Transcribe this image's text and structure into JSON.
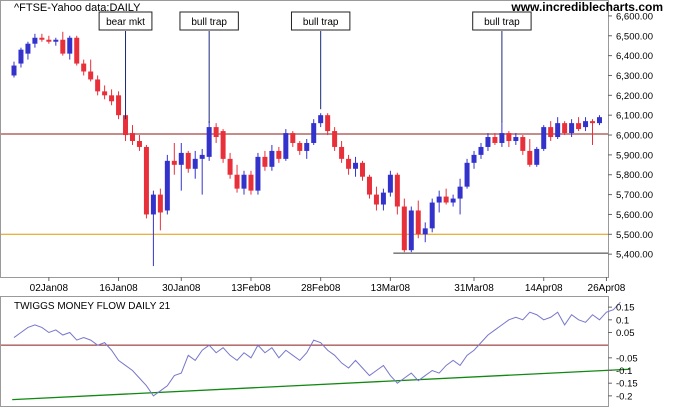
{
  "header": {
    "left_label": "^FTSE-Yahoo data:DAILY",
    "site": "www.incrediblecharts.com"
  },
  "colors": {
    "up": "#3333cc",
    "down": "#e8303a",
    "ref_line_6000": "#8b1a1a",
    "ref_line_5500": "#e69500",
    "ref_line_5400": "#333333",
    "mf_line": "#7777cc",
    "mf_zero": "#8b1a1a",
    "mf_trend": "#118811",
    "annotation_line": "#1a2a7a"
  },
  "chart_data": [
    {
      "type": "candlestick",
      "title": "^FTSE-Yahoo data:DAILY",
      "x_tick_labels": [
        "02Jan08",
        "16Jan08",
        "30Jan08",
        "13Feb08",
        "28Feb08",
        "13Mar08",
        "31Mar08",
        "14Apr08",
        "26Apr08"
      ],
      "x_tick_index": [
        5,
        15,
        24,
        34,
        44,
        54,
        66,
        76,
        85
      ],
      "y_ticks": [
        5400,
        5500,
        5600,
        5700,
        5800,
        5900,
        6000,
        6100,
        6200,
        6300,
        6400,
        6500,
        6600
      ],
      "y_tick_labels": [
        "5,400.00",
        "5,500.00",
        "5,600.00",
        "5,700.00",
        "5,800.00",
        "5,900.00",
        "6,000.00",
        "6,100.00",
        "6,200.00",
        "6,300.00",
        "6,400.00",
        "6,500.00",
        "6,600.00"
      ],
      "ylim": [
        5290,
        6660
      ],
      "reference_lines": [
        {
          "value": 6005,
          "color": "ref_line_6000"
        },
        {
          "value": 5500,
          "color": "ref_line_5500"
        },
        {
          "value": 5405,
          "color": "ref_line_5400",
          "from_index": 55
        }
      ],
      "annotations": [
        {
          "text": "bear mkt",
          "index": 16,
          "value": 6080
        },
        {
          "text": "bull trap",
          "index": 28,
          "value": 6060
        },
        {
          "text": "bull trap",
          "index": 44,
          "value": 6130
        },
        {
          "text": "bull trap",
          "index": 70,
          "value": 6060
        }
      ],
      "candles": [
        {
          "o": 6300,
          "h": 6370,
          "l": 6290,
          "c": 6350
        },
        {
          "o": 6360,
          "h": 6440,
          "l": 6340,
          "c": 6430
        },
        {
          "o": 6410,
          "h": 6470,
          "l": 6380,
          "c": 6460
        },
        {
          "o": 6460,
          "h": 6510,
          "l": 6440,
          "c": 6490
        },
        {
          "o": 6490,
          "h": 6510,
          "l": 6470,
          "c": 6480
        },
        {
          "o": 6480,
          "h": 6500,
          "l": 6460,
          "c": 6470
        },
        {
          "o": 6470,
          "h": 6490,
          "l": 6450,
          "c": 6480
        },
        {
          "o": 6480,
          "h": 6520,
          "l": 6400,
          "c": 6410
        },
        {
          "o": 6410,
          "h": 6500,
          "l": 6380,
          "c": 6490
        },
        {
          "o": 6490,
          "h": 6500,
          "l": 6350,
          "c": 6360
        },
        {
          "o": 6360,
          "h": 6380,
          "l": 6300,
          "c": 6320
        },
        {
          "o": 6320,
          "h": 6380,
          "l": 6270,
          "c": 6280
        },
        {
          "o": 6280,
          "h": 6300,
          "l": 6200,
          "c": 6220
        },
        {
          "o": 6220,
          "h": 6250,
          "l": 6180,
          "c": 6200
        },
        {
          "o": 6200,
          "h": 6230,
          "l": 6150,
          "c": 6170
        },
        {
          "o": 6200,
          "h": 6220,
          "l": 6080,
          "c": 6100
        },
        {
          "o": 6100,
          "h": 6120,
          "l": 5970,
          "c": 6000
        },
        {
          "o": 6010,
          "h": 6050,
          "l": 5950,
          "c": 5970
        },
        {
          "o": 5970,
          "h": 6000,
          "l": 5920,
          "c": 5940
        },
        {
          "o": 5940,
          "h": 5950,
          "l": 5580,
          "c": 5600
        },
        {
          "o": 5600,
          "h": 5720,
          "l": 5340,
          "c": 5700
        },
        {
          "o": 5700,
          "h": 5730,
          "l": 5520,
          "c": 5610
        },
        {
          "o": 5620,
          "h": 5900,
          "l": 5600,
          "c": 5870
        },
        {
          "o": 5870,
          "h": 5960,
          "l": 5800,
          "c": 5850
        },
        {
          "o": 5850,
          "h": 5960,
          "l": 5720,
          "c": 5910
        },
        {
          "o": 5910,
          "h": 5920,
          "l": 5810,
          "c": 5830
        },
        {
          "o": 5830,
          "h": 5920,
          "l": 5780,
          "c": 5880
        },
        {
          "o": 5880,
          "h": 5930,
          "l": 5700,
          "c": 5900
        },
        {
          "o": 5890,
          "h": 6070,
          "l": 5870,
          "c": 6040
        },
        {
          "o": 6040,
          "h": 6060,
          "l": 5960,
          "c": 5990
        },
        {
          "o": 6020,
          "h": 6030,
          "l": 5860,
          "c": 5880
        },
        {
          "o": 5880,
          "h": 5910,
          "l": 5780,
          "c": 5800
        },
        {
          "o": 5800,
          "h": 5850,
          "l": 5710,
          "c": 5730
        },
        {
          "o": 5730,
          "h": 5820,
          "l": 5700,
          "c": 5800
        },
        {
          "o": 5800,
          "h": 5820,
          "l": 5700,
          "c": 5720
        },
        {
          "o": 5720,
          "h": 5910,
          "l": 5700,
          "c": 5890
        },
        {
          "o": 5890,
          "h": 5920,
          "l": 5820,
          "c": 5840
        },
        {
          "o": 5840,
          "h": 5950,
          "l": 5820,
          "c": 5920
        },
        {
          "o": 5920,
          "h": 5940,
          "l": 5860,
          "c": 5880
        },
        {
          "o": 5880,
          "h": 6030,
          "l": 5870,
          "c": 6010
        },
        {
          "o": 6010,
          "h": 6020,
          "l": 5940,
          "c": 5960
        },
        {
          "o": 5960,
          "h": 5970,
          "l": 5900,
          "c": 5920
        },
        {
          "o": 5920,
          "h": 5980,
          "l": 5880,
          "c": 5960
        },
        {
          "o": 5960,
          "h": 6080,
          "l": 5950,
          "c": 6060
        },
        {
          "o": 6060,
          "h": 6110,
          "l": 6040,
          "c": 6100
        },
        {
          "o": 6100,
          "h": 6110,
          "l": 6000,
          "c": 6020
        },
        {
          "o": 6020,
          "h": 6040,
          "l": 5920,
          "c": 5940
        },
        {
          "o": 5940,
          "h": 5970,
          "l": 5860,
          "c": 5880
        },
        {
          "o": 5880,
          "h": 5900,
          "l": 5800,
          "c": 5830
        },
        {
          "o": 5830,
          "h": 5890,
          "l": 5790,
          "c": 5860
        },
        {
          "o": 5860,
          "h": 5870,
          "l": 5770,
          "c": 5790
        },
        {
          "o": 5790,
          "h": 5800,
          "l": 5680,
          "c": 5700
        },
        {
          "o": 5700,
          "h": 5740,
          "l": 5620,
          "c": 5650
        },
        {
          "o": 5650,
          "h": 5730,
          "l": 5620,
          "c": 5710
        },
        {
          "o": 5710,
          "h": 5820,
          "l": 5690,
          "c": 5800
        },
        {
          "o": 5800,
          "h": 5810,
          "l": 5600,
          "c": 5640
        },
        {
          "o": 5640,
          "h": 5680,
          "l": 5410,
          "c": 5420
        },
        {
          "o": 5420,
          "h": 5640,
          "l": 5410,
          "c": 5620
        },
        {
          "o": 5620,
          "h": 5670,
          "l": 5480,
          "c": 5500
        },
        {
          "o": 5500,
          "h": 5560,
          "l": 5460,
          "c": 5530
        },
        {
          "o": 5530,
          "h": 5680,
          "l": 5510,
          "c": 5660
        },
        {
          "o": 5660,
          "h": 5720,
          "l": 5610,
          "c": 5690
        },
        {
          "o": 5690,
          "h": 5730,
          "l": 5650,
          "c": 5660
        },
        {
          "o": 5660,
          "h": 5700,
          "l": 5640,
          "c": 5680
        },
        {
          "o": 5680,
          "h": 5780,
          "l": 5600,
          "c": 5740
        },
        {
          "o": 5740,
          "h": 5880,
          "l": 5730,
          "c": 5860
        },
        {
          "o": 5860,
          "h": 5920,
          "l": 5830,
          "c": 5900
        },
        {
          "o": 5900,
          "h": 5960,
          "l": 5880,
          "c": 5940
        },
        {
          "o": 5940,
          "h": 6010,
          "l": 5920,
          "c": 5990
        },
        {
          "o": 5990,
          "h": 6010,
          "l": 5950,
          "c": 5960
        },
        {
          "o": 5960,
          "h": 6060,
          "l": 5940,
          "c": 6010
        },
        {
          "o": 6010,
          "h": 6020,
          "l": 5940,
          "c": 5970
        },
        {
          "o": 5970,
          "h": 6010,
          "l": 5950,
          "c": 5990
        },
        {
          "o": 5990,
          "h": 6000,
          "l": 5900,
          "c": 5920
        },
        {
          "o": 5920,
          "h": 5980,
          "l": 5840,
          "c": 5850
        },
        {
          "o": 5850,
          "h": 5940,
          "l": 5840,
          "c": 5930
        },
        {
          "o": 5930,
          "h": 6050,
          "l": 5920,
          "c": 6040
        },
        {
          "o": 6040,
          "h": 6070,
          "l": 5970,
          "c": 5990
        },
        {
          "o": 5990,
          "h": 6090,
          "l": 5980,
          "c": 6060
        },
        {
          "o": 6060,
          "h": 6070,
          "l": 6000,
          "c": 6010
        },
        {
          "o": 6010,
          "h": 6080,
          "l": 5990,
          "c": 6060
        },
        {
          "o": 6060,
          "h": 6090,
          "l": 6020,
          "c": 6030
        },
        {
          "o": 6040,
          "h": 6090,
          "l": 6020,
          "c": 6070
        },
        {
          "o": 6070,
          "h": 6080,
          "l": 5950,
          "c": 6060
        },
        {
          "o": 6060,
          "h": 6100,
          "l": 6050,
          "c": 6090
        }
      ]
    },
    {
      "type": "line",
      "title": "TWIGGS MONEY FLOW DAILY 21",
      "y_ticks": [
        0.15,
        0.1,
        0.05,
        -0.05,
        -0.1,
        -0.15,
        -0.2
      ],
      "y_tick_labels": [
        "0.15",
        "0.1",
        "0.05",
        "-0.05",
        "-0.1",
        "-0.15",
        "-0.2"
      ],
      "ylim": [
        -0.24,
        0.19
      ],
      "zero_line": 0,
      "trendline": {
        "from": [
          -0.255,
          -0.215
        ],
        "to": [
          88.3,
          -0.095
        ]
      },
      "values": [
        0.03,
        0.05,
        0.07,
        0.08,
        0.07,
        0.05,
        0.06,
        0.04,
        0.05,
        0.02,
        0.03,
        0.02,
        0.0,
        0.01,
        -0.02,
        -0.06,
        -0.08,
        -0.1,
        -0.13,
        -0.16,
        -0.2,
        -0.18,
        -0.16,
        -0.12,
        -0.11,
        -0.04,
        -0.06,
        -0.02,
        0.0,
        -0.03,
        -0.01,
        -0.04,
        -0.06,
        -0.03,
        -0.05,
        0.0,
        -0.03,
        -0.01,
        -0.05,
        -0.02,
        -0.04,
        -0.06,
        -0.03,
        0.02,
        0.01,
        -0.02,
        -0.04,
        -0.07,
        -0.09,
        -0.06,
        -0.09,
        -0.12,
        -0.1,
        -0.08,
        -0.12,
        -0.15,
        -0.13,
        -0.11,
        -0.14,
        -0.12,
        -0.1,
        -0.11,
        -0.08,
        -0.06,
        -0.08,
        -0.04,
        -0.02,
        0.01,
        0.04,
        0.06,
        0.08,
        0.1,
        0.11,
        0.1,
        0.13,
        0.12,
        0.1,
        0.11,
        0.13,
        0.08,
        0.12,
        0.1,
        0.09,
        0.12,
        0.1,
        0.13,
        0.14,
        0.17
      ]
    }
  ]
}
